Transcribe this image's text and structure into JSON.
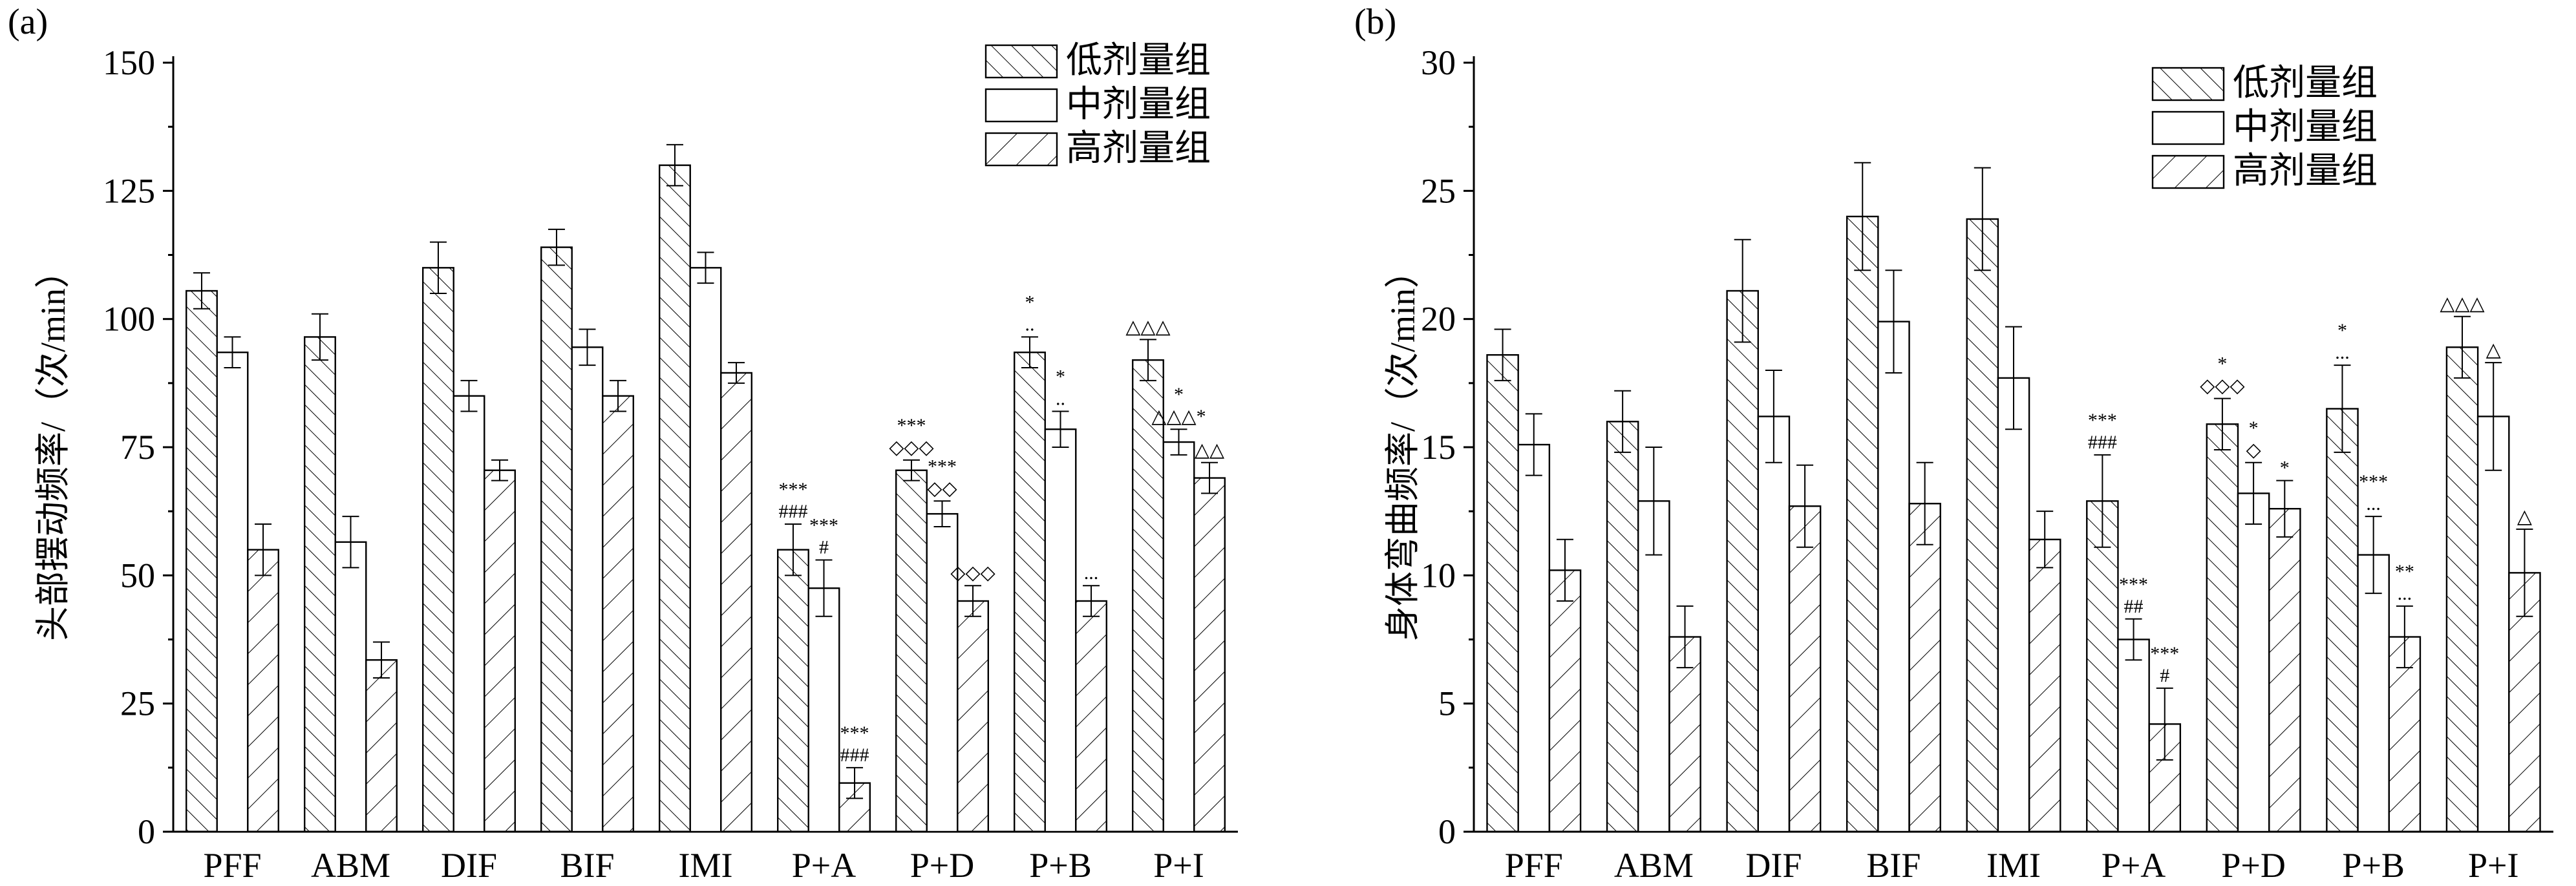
{
  "legend": [
    "低剂量组",
    "中剂量组",
    "高剂量组"
  ],
  "chart_data": [
    {
      "panel_label": "(a)",
      "type": "bar",
      "ylabel": "头部摆动频率/（次/min）",
      "xlabel": "",
      "ylim": [
        0,
        150
      ],
      "yticks": [
        0,
        25,
        50,
        75,
        100,
        125,
        150
      ],
      "legend_position": "top-right",
      "categories": [
        "PFF",
        "ABM",
        "DIF",
        "BIF",
        "IMI",
        "P+A",
        "P+D",
        "P+B",
        "P+I"
      ],
      "series": [
        {
          "name": "低剂量组",
          "values": [
            105.5,
            96.5,
            110,
            114,
            130,
            55,
            70.5,
            93.5,
            92
          ],
          "errors": [
            3.5,
            4.5,
            5,
            3.5,
            4,
            5,
            2,
            3,
            4
          ]
        },
        {
          "name": "中剂量组",
          "values": [
            93.5,
            56.5,
            85,
            94.5,
            110,
            47.5,
            62,
            78.5,
            76
          ],
          "errors": [
            3,
            5,
            3,
            3.5,
            3,
            5.5,
            2.5,
            3.5,
            2.5
          ]
        },
        {
          "name": "高剂量组",
          "values": [
            55,
            33.5,
            70.5,
            85,
            89.5,
            9.5,
            45,
            45,
            69
          ],
          "errors": [
            5,
            3.5,
            2,
            3,
            2,
            3,
            3,
            3,
            3
          ]
        }
      ],
      "annotations": [
        [
          "",
          "",
          ""
        ],
        [
          "",
          "",
          ""
        ],
        [
          "",
          "",
          ""
        ],
        [
          "",
          "",
          ""
        ],
        [
          "",
          "",
          ""
        ],
        [
          [
            "***",
            "###"
          ],
          [
            "***",
            "#"
          ],
          [
            "***",
            "###"
          ]
        ],
        [
          [
            "***",
            "◇◇◇"
          ],
          [
            "***",
            "◇◇"
          ],
          [
            "◇◇◇"
          ]
        ],
        [
          [
            "*",
            ".."
          ],
          [
            "*",
            ".."
          ],
          [
            "..."
          ]
        ],
        [
          [
            "△△△"
          ],
          [
            "*",
            "△△△*"
          ],
          [
            "△△"
          ]
        ]
      ]
    },
    {
      "panel_label": "(b)",
      "type": "bar",
      "ylabel": "身体弯曲频率/（次/min）",
      "xlabel": "",
      "ylim": [
        0,
        30
      ],
      "yticks": [
        0,
        5,
        10,
        15,
        20,
        25,
        30
      ],
      "legend_position": "top-right",
      "categories": [
        "PFF",
        "ABM",
        "DIF",
        "BIF",
        "IMI",
        "P+A",
        "P+D",
        "P+B",
        "P+I"
      ],
      "series": [
        {
          "name": "低剂量组",
          "values": [
            18.6,
            16,
            21.1,
            24,
            23.9,
            12.9,
            15.9,
            16.5,
            18.9
          ],
          "errors": [
            1,
            1.2,
            2,
            2.1,
            2,
            1.8,
            1,
            1.7,
            1.2
          ]
        },
        {
          "name": "中剂量组",
          "values": [
            15.1,
            12.9,
            16.2,
            19.9,
            17.7,
            7.5,
            13.2,
            10.8,
            16.2
          ],
          "errors": [
            1.2,
            2.1,
            1.8,
            2,
            2,
            0.8,
            1.2,
            1.5,
            2.1
          ]
        },
        {
          "name": "高剂量组",
          "values": [
            10.2,
            7.6,
            12.7,
            12.8,
            11.4,
            4.2,
            12.6,
            7.6,
            10.1
          ],
          "errors": [
            1.2,
            1.2,
            1.6,
            1.6,
            1.1,
            1.4,
            1.1,
            1.2,
            1.7
          ]
        }
      ],
      "annotations": [
        [
          "",
          "",
          ""
        ],
        [
          "",
          "",
          ""
        ],
        [
          "",
          "",
          ""
        ],
        [
          "",
          "",
          ""
        ],
        [
          "",
          "",
          ""
        ],
        [
          [
            "***",
            "###"
          ],
          [
            "***",
            "##"
          ],
          [
            "***",
            "#"
          ]
        ],
        [
          [
            "*",
            "◇◇◇"
          ],
          [
            "*",
            "◇"
          ],
          [
            "*"
          ]
        ],
        [
          [
            "*",
            "..."
          ],
          [
            "***",
            "..."
          ],
          [
            "**",
            "..."
          ]
        ],
        [
          [
            "△△△"
          ],
          [
            "△"
          ],
          [
            "△"
          ]
        ]
      ]
    }
  ],
  "colors": {
    "bar_fill": "#ffffff",
    "stroke": "#000000",
    "background": "#ffffff"
  }
}
